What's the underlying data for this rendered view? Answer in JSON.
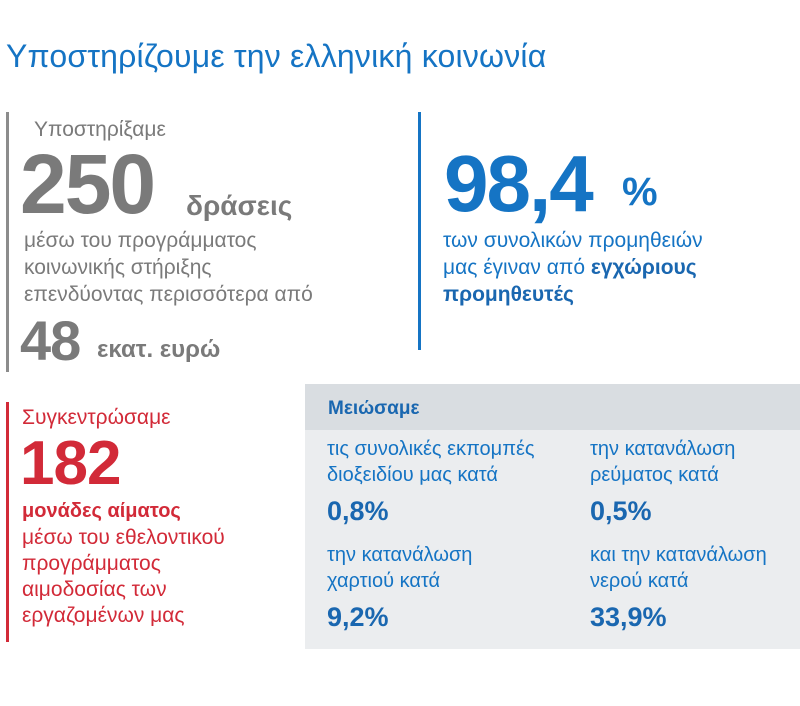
{
  "title": "Υποστηρίζουμε την ελληνική κοινωνία",
  "actions": {
    "intro": "Υποστηρίξαμε",
    "number": "250",
    "unit": "δράσεις",
    "line1": "μέσω του προγράμματος",
    "line2": "κοινωνικής στήριξης",
    "line3": "επενδύοντας περισσότερα από",
    "amount": "48",
    "amount_unit": "εκατ. ευρώ"
  },
  "suppliers": {
    "number": "98,4",
    "percent": "%",
    "line1": "των συνολικών προμηθειών",
    "line2_plain": "μας έγιναν από ",
    "line2_bold": "εγχώριους",
    "line3_bold": "προμηθευτές"
  },
  "blood": {
    "intro": "Συγκεντρώσαμε",
    "number": "182",
    "unit": "μονάδες αίματος",
    "line1": "μέσω του εθελοντικού",
    "line2": "προγράμματος",
    "line3": "αιμοδοσίας των",
    "line4": "εργαζομένων μας"
  },
  "reductions": {
    "heading": "Μειώσαμε",
    "items": [
      {
        "line1": "τις συνολικές εκπομπές",
        "line2": "διοξειδίου μας κατά",
        "value": "0,8%"
      },
      {
        "line1": "την κατανάλωση",
        "line2": "ρεύματος κατά",
        "value": "0,5%"
      },
      {
        "line1": "την κατανάλωση",
        "line2": "χαρτιού κατά",
        "value": "9,2%"
      },
      {
        "line1": "και την κατανάλωση",
        "line2": "νερού κατά",
        "value": "33,9%"
      }
    ]
  },
  "colors": {
    "blue": "#1574c4",
    "gray": "#7a7a7a",
    "red": "#d22a38",
    "panel": "#ebedef"
  }
}
